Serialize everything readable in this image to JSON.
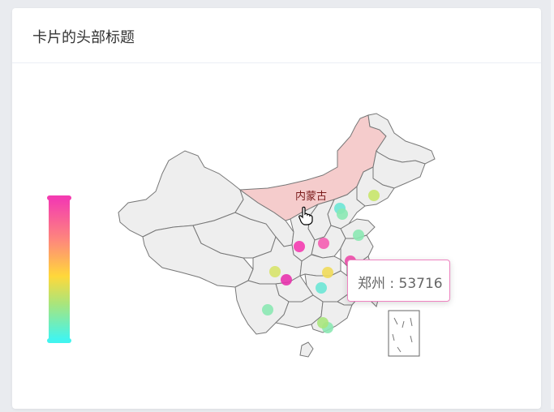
{
  "card": {
    "title": "卡片的头部标题"
  },
  "map": {
    "hover_region": "内蒙古",
    "visual_map_colors": [
      "#f43cb0",
      "#fe8a7a",
      "#ffd83a",
      "#a8e57d",
      "#42f4ee"
    ],
    "points": [
      {
        "name": "p1",
        "color": "#c8e66a"
      },
      {
        "name": "p2",
        "color": "#8be8b3"
      },
      {
        "name": "p3",
        "color": "#6ce6d5"
      },
      {
        "name": "p4",
        "color": "#8be8b3"
      },
      {
        "name": "p5",
        "color": "#ef4dab"
      },
      {
        "name": "p6",
        "color": "#f45db1"
      },
      {
        "name": "p7",
        "color": "#f43cb0"
      },
      {
        "name": "p8",
        "color": "#d7e36a"
      },
      {
        "name": "p9",
        "color": "#f0da5a"
      },
      {
        "name": "p10",
        "color": "#e833ad"
      },
      {
        "name": "p11",
        "color": "#6ce6d5"
      },
      {
        "name": "p12",
        "color": "#8be8b3"
      },
      {
        "name": "p13",
        "color": "#8be8b3"
      },
      {
        "name": "p14",
        "color": "#a8e57d"
      }
    ]
  },
  "tooltip": {
    "city": "郑州",
    "separator": " : ",
    "value": "53716"
  }
}
